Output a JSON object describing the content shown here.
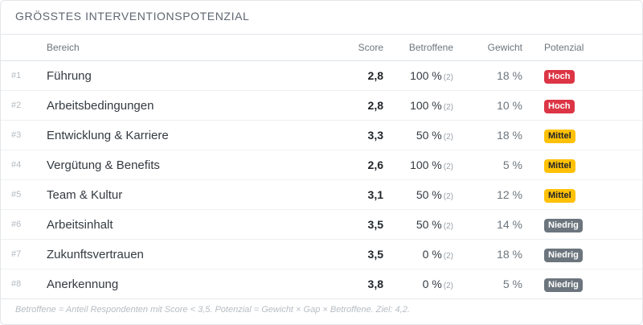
{
  "card": {
    "title": "GRÖSSTES INTERVENTIONSPOTENZIAL",
    "footnote": "Betroffene = Anteil Respondenten mit Score < 3,5. Potenzial = Gewicht × Gap × Betroffene. Ziel: 4,2."
  },
  "table": {
    "headers": {
      "rank": "",
      "area": "Bereich",
      "score": "Score",
      "affected": "Betroffene",
      "weight": "Gewicht",
      "potential": "Potenzial"
    },
    "rows": [
      {
        "rank": "#1",
        "area": "Führung",
        "score": "2,8",
        "affected": "100 %",
        "count": "(2)",
        "weight": "18 %",
        "potential": "Hoch",
        "level": "high"
      },
      {
        "rank": "#2",
        "area": "Arbeitsbedingungen",
        "score": "2,8",
        "affected": "100 %",
        "count": "(2)",
        "weight": "10 %",
        "potential": "Hoch",
        "level": "high"
      },
      {
        "rank": "#3",
        "area": "Entwicklung & Karriere",
        "score": "3,3",
        "affected": "50 %",
        "count": "(2)",
        "weight": "18 %",
        "potential": "Mittel",
        "level": "medium"
      },
      {
        "rank": "#4",
        "area": "Vergütung & Benefits",
        "score": "2,6",
        "affected": "100 %",
        "count": "(2)",
        "weight": "5 %",
        "potential": "Mittel",
        "level": "medium"
      },
      {
        "rank": "#5",
        "area": "Team & Kultur",
        "score": "3,1",
        "affected": "50 %",
        "count": "(2)",
        "weight": "12 %",
        "potential": "Mittel",
        "level": "medium"
      },
      {
        "rank": "#6",
        "area": "Arbeitsinhalt",
        "score": "3,5",
        "affected": "50 %",
        "count": "(2)",
        "weight": "14 %",
        "potential": "Niedrig",
        "level": "low"
      },
      {
        "rank": "#7",
        "area": "Zukunftsvertrauen",
        "score": "3,5",
        "affected": "0 %",
        "count": "(2)",
        "weight": "18 %",
        "potential": "Niedrig",
        "level": "low"
      },
      {
        "rank": "#8",
        "area": "Anerkennung",
        "score": "3,8",
        "affected": "0 %",
        "count": "(2)",
        "weight": "5 %",
        "potential": "Niedrig",
        "level": "low"
      }
    ]
  },
  "badge_colors": {
    "high": {
      "bg": "#dc3545",
      "fg": "#ffffff"
    },
    "medium": {
      "bg": "#ffc107",
      "fg": "#212529"
    },
    "low": {
      "bg": "#6c757d",
      "fg": "#ffffff"
    }
  }
}
